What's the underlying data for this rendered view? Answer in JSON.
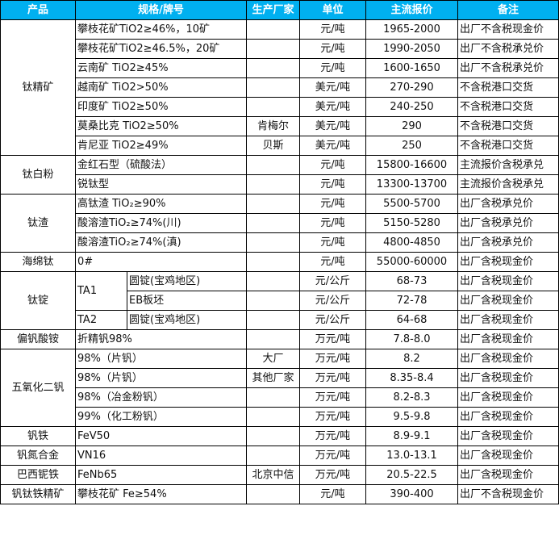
{
  "header": [
    "产品",
    "规格/牌号",
    "生产厂家",
    "单位",
    "主流报价",
    "备注"
  ],
  "colors": {
    "header_bg": "#00B0F0",
    "header_text": "#FFFFFF"
  },
  "groups": [
    {
      "product": "钛精矿",
      "rows": [
        {
          "spec": "攀枝花矿TiO2≥46%，10矿",
          "maker": "",
          "unit": "元/吨",
          "price": "1965-2000",
          "note": "出厂不含税现金价"
        },
        {
          "spec": "攀枝花矿TiO2≥46.5%，20矿",
          "maker": "",
          "unit": "元/吨",
          "price": "1990-2050",
          "note": "出厂不含税承兑价"
        },
        {
          "spec": "云南矿 TiO2≥45%",
          "maker": "",
          "unit": "元/吨",
          "price": "1600-1650",
          "note": "出厂不含税承兑价"
        },
        {
          "spec": "越南矿 TiO2>50%",
          "maker": "",
          "unit": "美元/吨",
          "price": "270-290",
          "note": "不含税港口交货"
        },
        {
          "spec": "印度矿 TiO2≥50%",
          "maker": "",
          "unit": "美元/吨",
          "price": "240-250",
          "note": "不含税港口交货"
        },
        {
          "spec": "莫桑比克 TiO2≥50%",
          "maker": "肯梅尔",
          "unit": "美元/吨",
          "price": "290",
          "note": "不含税港口交货"
        },
        {
          "spec": "肯尼亚 TiO2≥49%",
          "maker": "贝斯",
          "unit": "美元/吨",
          "price": "250",
          "note": "不含税港口交货"
        }
      ]
    },
    {
      "product": "钛白粉",
      "rows": [
        {
          "spec": "金红石型（硫酸法）",
          "maker": "",
          "unit": "元/吨",
          "price": "15800-16600",
          "note": "主流报价含税承兑"
        },
        {
          "spec": "锐钛型",
          "maker": "",
          "unit": "元/吨",
          "price": "13300-13700",
          "note": "主流报价含税承兑"
        }
      ]
    },
    {
      "product": "钛渣",
      "rows": [
        {
          "spec": "高钛渣 TiO₂≥90%",
          "maker": "",
          "unit": "元/吨",
          "price": "5500-5700",
          "note": "出厂含税承兑价"
        },
        {
          "spec": "酸溶渣TiO₂≥74%(川)",
          "maker": "",
          "unit": "元/吨",
          "price": "5150-5280",
          "note": "出厂含税承兑价"
        },
        {
          "spec": "酸溶渣TiO₂≥74%(滇)",
          "maker": "",
          "unit": "元/吨",
          "price": "4800-4850",
          "note": "出厂含税承兑价"
        }
      ]
    },
    {
      "product": "海绵钛",
      "rows": [
        {
          "spec": "0#",
          "maker": "",
          "unit": "元/吨",
          "price": "55000-60000",
          "note": "出厂含税现金价"
        }
      ]
    },
    {
      "product": "钛锭",
      "rows": [
        {
          "spec": "TA1",
          "sub": "圆锭(宝鸡地区)",
          "maker": "",
          "unit": "元/公斤",
          "price": "68-73",
          "note": "出厂含税现金价"
        },
        {
          "spec": "TA1",
          "sub": "EB板坯",
          "maker": "",
          "unit": "元/公斤",
          "price": "72-78",
          "note": "出厂含税现金价"
        },
        {
          "spec": "TA2",
          "sub": "圆锭(宝鸡地区)",
          "maker": "",
          "unit": "元/公斤",
          "price": "64-68",
          "note": "出厂含税现金价"
        }
      ]
    },
    {
      "product": "偏钒酸铵",
      "rows": [
        {
          "spec": "折精钒98%",
          "maker": "",
          "unit": "万元/吨",
          "price": "7.8-8.0",
          "note": "出厂含税现金价"
        }
      ]
    },
    {
      "product": "五氧化二钒",
      "rows": [
        {
          "spec": "98%（片钒）",
          "maker": "大厂",
          "unit": "万元/吨",
          "price": "8.2",
          "note": "出厂含税现金价"
        },
        {
          "spec": "98%（片钒）",
          "maker": "其他厂家",
          "unit": "万元/吨",
          "price": "8.35-8.4",
          "note": "出厂含税现金价"
        },
        {
          "spec": "98%（冶金粉钒）",
          "maker": "",
          "unit": "万元/吨",
          "price": "8.2-8.3",
          "note": "出厂含税现金价"
        },
        {
          "spec": "99%（化工粉钒）",
          "maker": "",
          "unit": "万元/吨",
          "price": "9.5-9.8",
          "note": "出厂含税现金价"
        }
      ]
    },
    {
      "product": "钒铁",
      "rows": [
        {
          "spec": "FeV50",
          "maker": "",
          "unit": "万元/吨",
          "price": "8.9-9.1",
          "note": "出厂含税现金价"
        }
      ]
    },
    {
      "product": "钒氮合金",
      "rows": [
        {
          "spec": "VN16",
          "maker": "",
          "unit": "万元/吨",
          "price": "13.0-13.1",
          "note": "出厂含税现金价"
        }
      ]
    },
    {
      "product": "巴西铌铁",
      "rows": [
        {
          "spec": "FeNb65",
          "maker": "北京中信",
          "unit": "万元/吨",
          "price": "20.5-22.5",
          "note": "出厂含税现金价"
        }
      ]
    },
    {
      "product": "钒钛铁精矿",
      "rows": [
        {
          "spec": "攀枝花矿 Fe≥54%",
          "maker": "",
          "unit": "元/吨",
          "price": "390-400",
          "note": "出厂不含税现金价"
        }
      ]
    }
  ]
}
